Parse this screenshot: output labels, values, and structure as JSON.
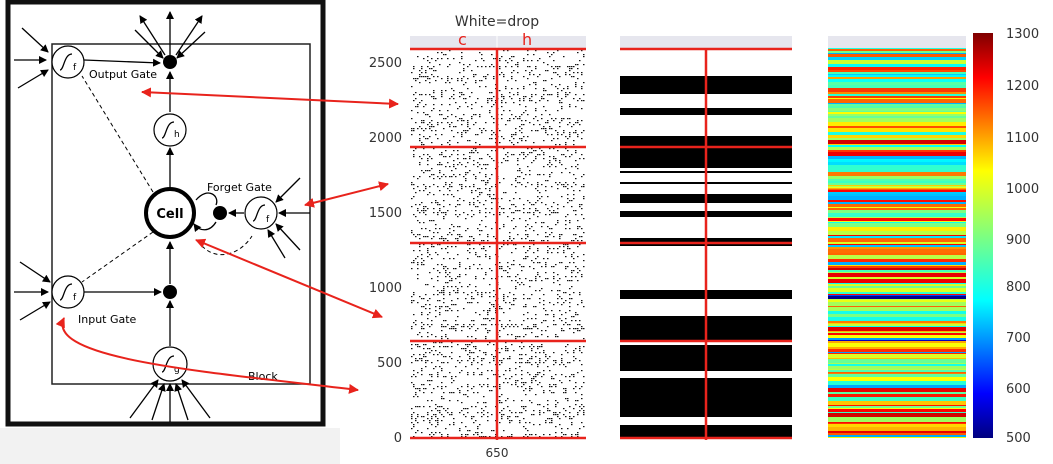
{
  "diagram": {
    "labels": {
      "output_gate": "Output Gate",
      "forget_gate": "Forget Gate",
      "input_gate": "Input Gate",
      "cell": "Cell",
      "block": "Block"
    },
    "gate_subscripts": {
      "f": "f",
      "h": "h",
      "g": "g"
    }
  },
  "panel_title": "White=drop",
  "column_labels": [
    "c",
    "h"
  ],
  "yaxis": {
    "ticks": [
      "2500",
      "2000",
      "1500",
      "1000",
      "500",
      "0"
    ],
    "xtick": "650"
  },
  "colorbar": {
    "ticks": [
      "1300",
      "1200",
      "1100",
      "1000",
      "900",
      "800",
      "700",
      "600",
      "500"
    ],
    "range": [
      500,
      1300
    ]
  },
  "colors": {
    "highlight": "#e8231c",
    "background_panel": "#f2f2f2"
  }
}
